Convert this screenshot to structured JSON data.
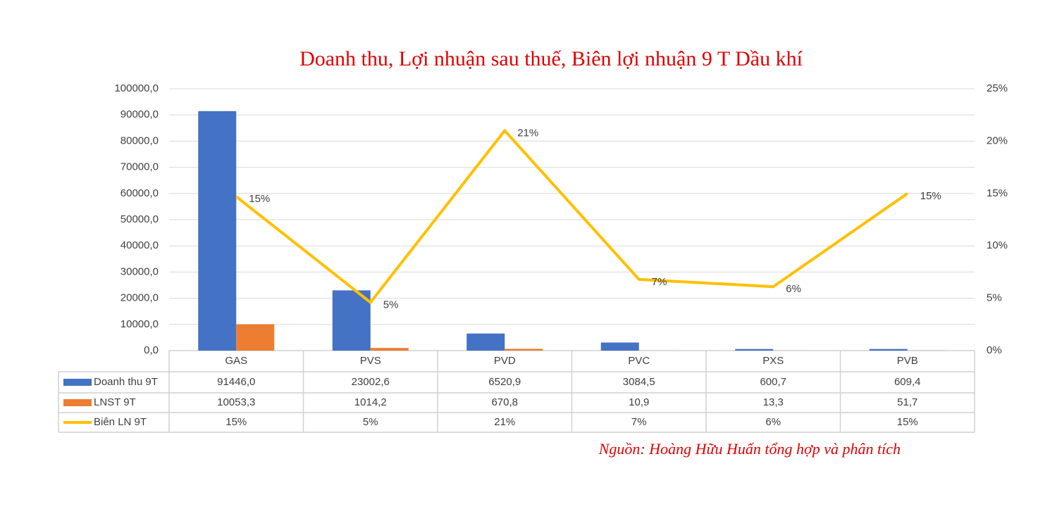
{
  "chart_data": {
    "type": "bar",
    "title": "Doanh thu, Lợi nhuận sau thuế, Biên lợi nhuận 9 T Dầu khí",
    "source": "Nguồn: Hoàng Hữu Huấn tổng hợp và phân tích",
    "categories": [
      "GAS",
      "PVS",
      "PVD",
      "PVC",
      "PXS",
      "PVB"
    ],
    "series": [
      {
        "name": "Doanh thu 9T",
        "type": "bar",
        "color": "#4472c4",
        "values": [
          91446.0,
          23002.6,
          6520.9,
          3084.5,
          600.7,
          609.4
        ],
        "value_labels": [
          "91446,0",
          "23002,6",
          "6520,9",
          "3084,5",
          "600,7",
          "609,4"
        ]
      },
      {
        "name": "LNST 9T",
        "type": "bar",
        "color": "#ed7d31",
        "values": [
          10053.3,
          1014.2,
          670.8,
          10.9,
          13.3,
          51.7
        ],
        "value_labels": [
          "10053,3",
          "1014,2",
          "670,8",
          "10,9",
          "13,3",
          "51,7"
        ]
      },
      {
        "name": "Biên LN 9T",
        "type": "line",
        "axis": "y2",
        "color": "#ffc000",
        "values": [
          14.7,
          4.6,
          21,
          6.8,
          6.1,
          15
        ],
        "value_labels": [
          "15%",
          "5%",
          "21%",
          "7%",
          "6%",
          "15%"
        ]
      }
    ],
    "ylim": [
      0,
      100000
    ],
    "yticks": [
      {
        "value": 0,
        "label": "0,0"
      },
      {
        "value": 10000,
        "label": "10000,0"
      },
      {
        "value": 20000,
        "label": "20000,0"
      },
      {
        "value": 30000,
        "label": "30000,0"
      },
      {
        "value": 40000,
        "label": "40000,0"
      },
      {
        "value": 50000,
        "label": "50000,0"
      },
      {
        "value": 60000,
        "label": "60000,0"
      },
      {
        "value": 70000,
        "label": "70000,0"
      },
      {
        "value": 80000,
        "label": "80000,0"
      },
      {
        "value": 90000,
        "label": "90000,0"
      },
      {
        "value": 100000,
        "label": "100000,0"
      }
    ],
    "y2lim": [
      0,
      25
    ],
    "y2ticks": [
      {
        "value": 0,
        "label": "0%"
      },
      {
        "value": 5,
        "label": "5%"
      },
      {
        "value": 10,
        "label": "10%"
      },
      {
        "value": 15,
        "label": "15%"
      },
      {
        "value": 20,
        "label": "20%"
      },
      {
        "value": 25,
        "label": "25%"
      }
    ],
    "grid": true
  }
}
